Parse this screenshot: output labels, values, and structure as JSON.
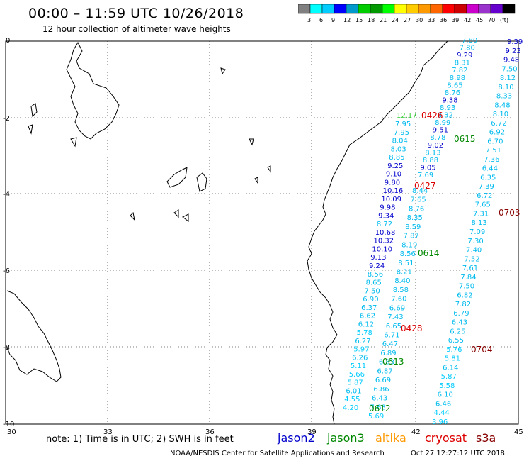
{
  "title": "00:00 – 11:59 UTC 10/26/2018",
  "subtitle": "12 hour collection of altimeter wave heights",
  "colorbar": {
    "colors": [
      "#808080",
      "#00ffff",
      "#00ccff",
      "#0000ff",
      "#0099cc",
      "#00cc00",
      "#009900",
      "#00ff00",
      "#ffff00",
      "#ffcc00",
      "#ff9900",
      "#ff6600",
      "#ff0000",
      "#cc0000",
      "#cc00cc",
      "#9933cc",
      "#6600cc",
      "#000000"
    ],
    "labels": [
      "3",
      "6",
      "9",
      "12",
      "15",
      "18",
      "21",
      "24",
      "27",
      "30",
      "33",
      "36",
      "39",
      "42",
      "45",
      "70",
      "(ft)"
    ]
  },
  "axes": {
    "x_ticks": [
      "30",
      "33",
      "36",
      "39",
      "42",
      "45"
    ],
    "y_ticks": [
      "0",
      "-2",
      "-4",
      "-6",
      "-8",
      "-10"
    ]
  },
  "note": "note: 1) Time is in UTC; 2) SWH is in feet",
  "satellites": [
    {
      "name": "jason2",
      "color": "#0000cc"
    },
    {
      "name": "jason3",
      "color": "#008800"
    },
    {
      "name": "altika",
      "color": "#ff9900"
    },
    {
      "name": "cryosat",
      "color": "#dd0000"
    },
    {
      "name": "s3a",
      "color": "#880000"
    }
  ],
  "credit": "NOAA/NESDIS Center for Satellite Applications and Research",
  "timestamp": "Oct 27 12:27:12 UTC 2018",
  "time_labels": [
    {
      "text": "0426",
      "color": "#dd0000"
    },
    {
      "text": "0615",
      "color": "#008800"
    },
    {
      "text": "0427",
      "color": "#dd0000"
    },
    {
      "text": "0703",
      "color": "#880000"
    },
    {
      "text": "0614",
      "color": "#008800"
    },
    {
      "text": "0428",
      "color": "#dd0000"
    },
    {
      "text": "0704",
      "color": "#880000"
    },
    {
      "text": "0613",
      "color": "#008800"
    },
    {
      "text": "0612",
      "color": "#008800"
    }
  ],
  "track_values": {
    "far_right": [
      "9.39",
      "9.23",
      "9.48",
      "7.50",
      "8.12",
      "8.10",
      "8.33",
      "8.48",
      "8.10",
      "6.72",
      "6.92",
      "6.70",
      "7.51",
      "7.36",
      "6.44",
      "6.35",
      "7.39",
      "6.72",
      "7.65",
      "7.31",
      "8.13",
      "7.09",
      "7.30",
      "7.40",
      "7.52",
      "7.61",
      "7.84",
      "7.50",
      "6.82",
      "7.82",
      "6.79",
      "6.43",
      "6.25",
      "6.55",
      "5.76",
      "5.81",
      "6.14",
      "5.87",
      "5.58",
      "6.10",
      "6.46",
      "4.44",
      "3.96"
    ],
    "mid": [
      "7.80",
      "7.80",
      "9.29",
      "8.31",
      "7.82",
      "8.98",
      "8.65",
      "8.76",
      "9.38",
      "8.93",
      "8.32",
      "8.99",
      "9.51",
      "8.78",
      "9.02",
      "8.13",
      "8.88",
      "9.05",
      "7.69"
    ],
    "left": [
      "7.95",
      "7.95",
      "8.04",
      "8.03",
      "8.85",
      "9.25",
      "9.10",
      "9.80",
      "10.16",
      "10.09",
      "9.98",
      "9.34",
      "8.72",
      "10.68",
      "10.32",
      "10.10",
      "9.13",
      "9.24",
      "8.56",
      "8.65",
      "7.50",
      "6.90",
      "6.37",
      "6.62",
      "6.12",
      "5.78",
      "6.27",
      "5.97",
      "6.26",
      "5.11",
      "5.66",
      "5.87",
      "6.01",
      "4.55",
      "4.20"
    ],
    "left_b": [
      "8.44",
      "7.65",
      "8.76",
      "8.35",
      "8.59",
      "7.87",
      "8.19",
      "8.56",
      "8.51",
      "8.21",
      "8.40",
      "8.58",
      "7.60",
      "6.69",
      "7.43",
      "6.65",
      "6.71",
      "6.47",
      "6.89",
      "6.83",
      "6.87",
      "6.69",
      "6.86",
      "6.43",
      "7.68",
      "5.69"
    ]
  },
  "green_value": "12.17"
}
